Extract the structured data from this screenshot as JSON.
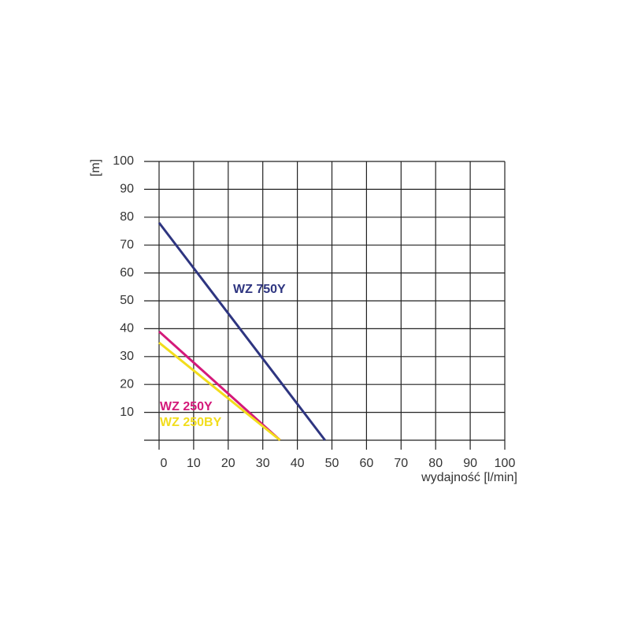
{
  "chart_data": {
    "type": "line",
    "y_label": "[m]",
    "x_label": "wydajność [l/min]",
    "xlim": [
      0,
      100
    ],
    "xticks": [
      0,
      10,
      20,
      30,
      40,
      50,
      60,
      70,
      80,
      90,
      100
    ],
    "ylim": [
      0,
      100
    ],
    "yticks": [
      10,
      20,
      30,
      40,
      50,
      60,
      70,
      80,
      90,
      100
    ],
    "grid": true,
    "series": [
      {
        "name": "WZ 750Y",
        "color": "#2e3580",
        "x": [
          0,
          48
        ],
        "values": [
          78,
          0
        ]
      },
      {
        "name": "WZ 250Y",
        "color": "#d4197a",
        "x": [
          0,
          35
        ],
        "values": [
          39,
          0
        ]
      },
      {
        "name": "WZ 250BY",
        "color": "#f2dd1c",
        "x": [
          0,
          35
        ],
        "values": [
          35,
          0
        ]
      }
    ]
  }
}
